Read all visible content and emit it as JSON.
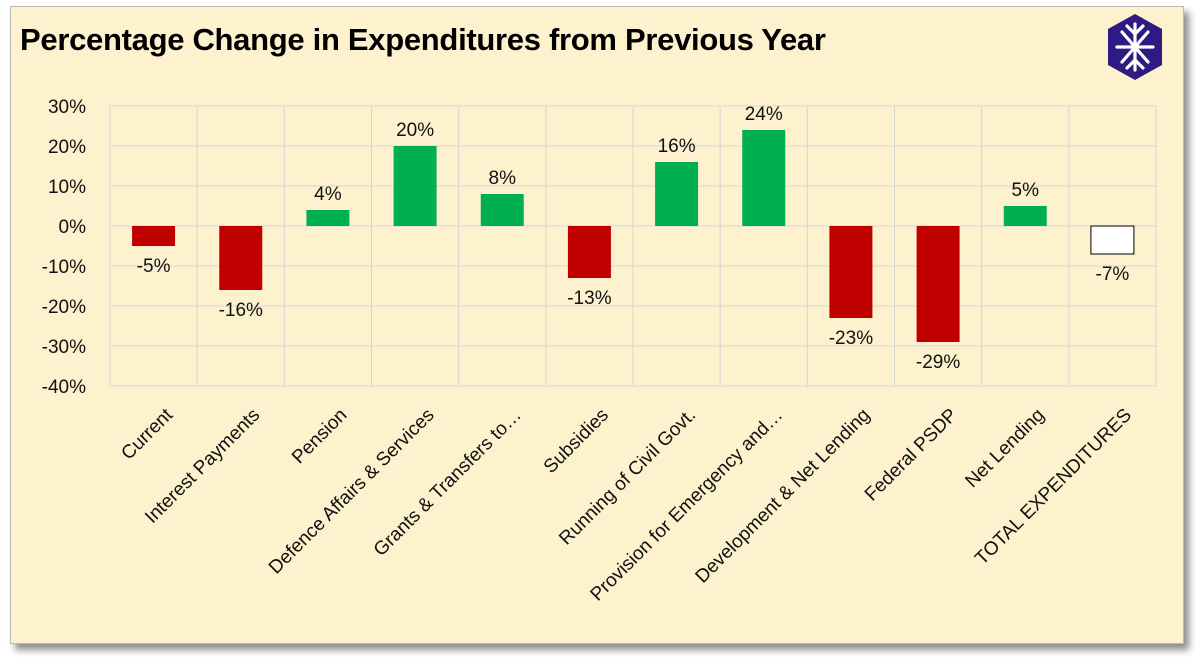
{
  "chart_data": {
    "type": "bar",
    "title": "Percentage Change in Expenditures from Previous Year",
    "categories": [
      "Current",
      "Interest Payments",
      "Pension",
      "Defence Affairs & Services",
      "Grants & Transfers to…",
      "Subsidies",
      "Running of Civil Govt.",
      "Provision for Emergency and…",
      "Development & Net Lending",
      "Federal PSDP",
      "Net Lending",
      "TOTAL EXPENDITURES"
    ],
    "values": [
      -5,
      -16,
      4,
      20,
      8,
      -13,
      16,
      24,
      -23,
      -29,
      5,
      -7
    ],
    "value_labels": [
      "-5%",
      "-16%",
      "4%",
      "20%",
      "8%",
      "-13%",
      "16%",
      "24%",
      "-23%",
      "-29%",
      "5%",
      "-7%"
    ],
    "y_ticks": [
      "30%",
      "20%",
      "10%",
      "0%",
      "-10%",
      "-20%",
      "-30%",
      "-40%"
    ],
    "ylim": [
      -40,
      30
    ],
    "grid": true,
    "colors": {
      "positive": "#00b050",
      "negative": "#c00000",
      "total_fill": "#ffffff",
      "total_border": "#000000",
      "grid": "#d6d6d6",
      "background": "#fdf2cd"
    }
  },
  "logo": {
    "name": "brand-logo-icon",
    "color": "#2e1a82"
  }
}
